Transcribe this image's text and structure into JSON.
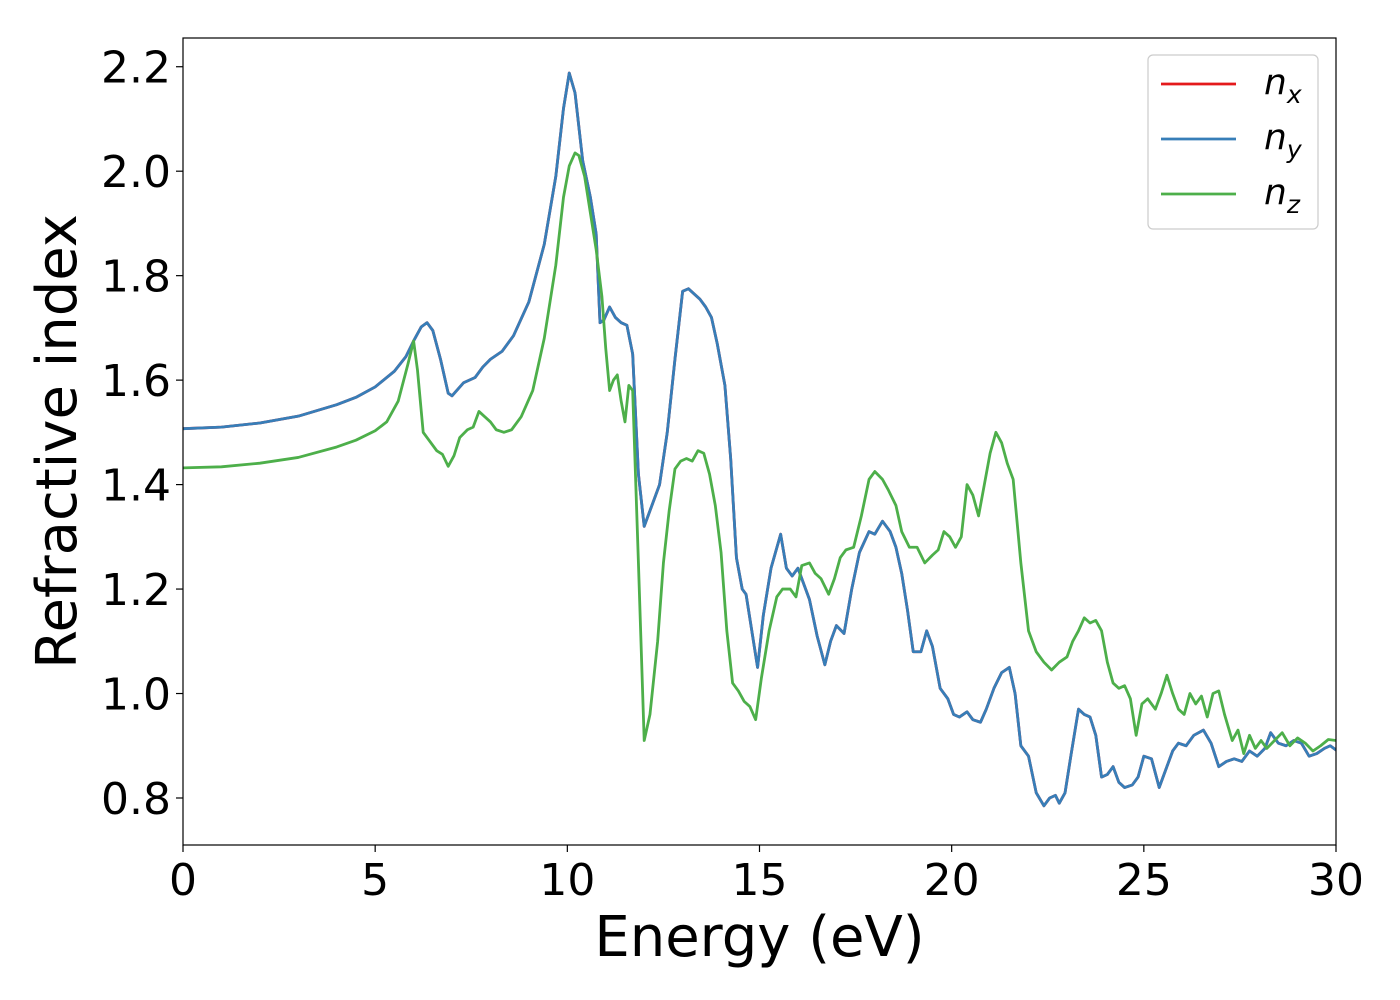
{
  "chart_data": {
    "type": "line",
    "title": "",
    "xlabel": "Energy (eV)",
    "ylabel": "Refractive index",
    "xlim": [
      0,
      30
    ],
    "ylim": [
      0.71,
      2.255
    ],
    "xticks": [
      0,
      5,
      10,
      15,
      20,
      25,
      30
    ],
    "xtick_labels": [
      "0",
      "5",
      "10",
      "15",
      "20",
      "25",
      "30"
    ],
    "yticks": [
      0.8,
      1.0,
      1.2,
      1.4,
      1.6,
      1.8,
      2.0,
      2.2
    ],
    "ytick_labels": [
      "0.8",
      "1.0",
      "1.2",
      "1.4",
      "1.6",
      "1.8",
      "2.0",
      "2.2"
    ],
    "grid": false,
    "legend": {
      "position": "top-right",
      "entries": [
        {
          "base": "n",
          "sub": "x",
          "color": "#e41a1c"
        },
        {
          "base": "n",
          "sub": "y",
          "color": "#377eb8"
        },
        {
          "base": "n",
          "sub": "z",
          "color": "#4daf4a"
        }
      ]
    },
    "series": [
      {
        "name": "n_x",
        "color": "#e41a1c",
        "x": [
          0,
          1,
          2,
          3,
          4,
          4.5,
          5,
          5.5,
          5.8,
          6.0,
          6.2,
          6.35,
          6.5,
          6.7,
          6.9,
          7.0,
          7.3,
          7.6,
          7.8,
          8.0,
          8.3,
          8.6,
          9.0,
          9.4,
          9.7,
          9.9,
          10.05,
          10.2,
          10.4,
          10.6,
          10.75,
          10.85,
          10.95,
          11.1,
          11.25,
          11.4,
          11.55,
          11.7,
          11.85,
          12.0,
          12.2,
          12.4,
          12.6,
          12.8,
          13.0,
          13.15,
          13.3,
          13.45,
          13.6,
          13.75,
          13.9,
          14.1,
          14.25,
          14.4,
          14.55,
          14.65,
          14.8,
          14.95,
          15.1,
          15.3,
          15.55,
          15.7,
          15.85,
          16.0,
          16.3,
          16.5,
          16.7,
          16.85,
          17.0,
          17.2,
          17.4,
          17.6,
          17.85,
          18.0,
          18.2,
          18.4,
          18.55,
          18.7,
          18.85,
          19.0,
          19.2,
          19.35,
          19.5,
          19.7,
          19.9,
          20.05,
          20.2,
          20.4,
          20.55,
          20.75,
          20.9,
          21.1,
          21.3,
          21.5,
          21.65,
          21.8,
          22.0,
          22.2,
          22.4,
          22.55,
          22.7,
          22.8,
          22.95,
          23.1,
          23.3,
          23.45,
          23.6,
          23.75,
          23.9,
          24.05,
          24.2,
          24.35,
          24.5,
          24.7,
          24.85,
          25.0,
          25.2,
          25.4,
          25.6,
          25.75,
          25.9,
          26.1,
          26.3,
          26.55,
          26.75,
          26.95,
          27.15,
          27.35,
          27.55,
          27.75,
          27.95,
          28.15,
          28.3,
          28.5,
          28.7,
          28.9,
          29.1,
          29.3,
          29.5,
          29.7,
          29.85,
          30.0
        ],
        "y": [
          1.507,
          1.51,
          1.518,
          1.531,
          1.553,
          1.567,
          1.587,
          1.617,
          1.645,
          1.675,
          1.702,
          1.71,
          1.695,
          1.64,
          1.575,
          1.57,
          1.595,
          1.605,
          1.625,
          1.64,
          1.655,
          1.685,
          1.75,
          1.86,
          1.99,
          2.12,
          2.188,
          2.15,
          2.02,
          1.95,
          1.88,
          1.71,
          1.715,
          1.74,
          1.72,
          1.71,
          1.705,
          1.65,
          1.42,
          1.32,
          1.36,
          1.4,
          1.5,
          1.64,
          1.77,
          1.775,
          1.765,
          1.755,
          1.74,
          1.72,
          1.67,
          1.59,
          1.45,
          1.26,
          1.2,
          1.19,
          1.12,
          1.05,
          1.15,
          1.24,
          1.305,
          1.24,
          1.225,
          1.24,
          1.18,
          1.11,
          1.055,
          1.1,
          1.13,
          1.115,
          1.2,
          1.27,
          1.31,
          1.305,
          1.33,
          1.31,
          1.28,
          1.23,
          1.16,
          1.08,
          1.08,
          1.12,
          1.09,
          1.01,
          0.99,
          0.96,
          0.955,
          0.965,
          0.95,
          0.945,
          0.97,
          1.01,
          1.04,
          1.05,
          1.0,
          0.9,
          0.88,
          0.81,
          0.785,
          0.8,
          0.805,
          0.79,
          0.81,
          0.88,
          0.97,
          0.96,
          0.955,
          0.92,
          0.84,
          0.845,
          0.86,
          0.83,
          0.82,
          0.825,
          0.84,
          0.88,
          0.875,
          0.82,
          0.86,
          0.89,
          0.905,
          0.9,
          0.92,
          0.93,
          0.905,
          0.86,
          0.87,
          0.875,
          0.87,
          0.89,
          0.88,
          0.895,
          0.925,
          0.905,
          0.9,
          0.91,
          0.905,
          0.88,
          0.885,
          0.895,
          0.9,
          0.892
        ]
      },
      {
        "name": "n_y",
        "color": "#377eb8",
        "x": [
          0,
          1,
          2,
          3,
          4,
          4.5,
          5,
          5.5,
          5.8,
          6.0,
          6.2,
          6.35,
          6.5,
          6.7,
          6.9,
          7.0,
          7.3,
          7.6,
          7.8,
          8.0,
          8.3,
          8.6,
          9.0,
          9.4,
          9.7,
          9.9,
          10.05,
          10.2,
          10.4,
          10.6,
          10.75,
          10.85,
          10.95,
          11.1,
          11.25,
          11.4,
          11.55,
          11.7,
          11.85,
          12.0,
          12.2,
          12.4,
          12.6,
          12.8,
          13.0,
          13.15,
          13.3,
          13.45,
          13.6,
          13.75,
          13.9,
          14.1,
          14.25,
          14.4,
          14.55,
          14.65,
          14.8,
          14.95,
          15.1,
          15.3,
          15.55,
          15.7,
          15.85,
          16.0,
          16.3,
          16.5,
          16.7,
          16.85,
          17.0,
          17.2,
          17.4,
          17.6,
          17.85,
          18.0,
          18.2,
          18.4,
          18.55,
          18.7,
          18.85,
          19.0,
          19.2,
          19.35,
          19.5,
          19.7,
          19.9,
          20.05,
          20.2,
          20.4,
          20.55,
          20.75,
          20.9,
          21.1,
          21.3,
          21.5,
          21.65,
          21.8,
          22.0,
          22.2,
          22.4,
          22.55,
          22.7,
          22.8,
          22.95,
          23.1,
          23.3,
          23.45,
          23.6,
          23.75,
          23.9,
          24.05,
          24.2,
          24.35,
          24.5,
          24.7,
          24.85,
          25.0,
          25.2,
          25.4,
          25.6,
          25.75,
          25.9,
          26.1,
          26.3,
          26.55,
          26.75,
          26.95,
          27.15,
          27.35,
          27.55,
          27.75,
          27.95,
          28.15,
          28.3,
          28.5,
          28.7,
          28.9,
          29.1,
          29.3,
          29.5,
          29.7,
          29.85,
          30.0
        ],
        "y": [
          1.507,
          1.51,
          1.518,
          1.531,
          1.553,
          1.567,
          1.587,
          1.617,
          1.645,
          1.675,
          1.702,
          1.71,
          1.695,
          1.64,
          1.575,
          1.57,
          1.595,
          1.605,
          1.625,
          1.64,
          1.655,
          1.685,
          1.75,
          1.86,
          1.99,
          2.12,
          2.188,
          2.15,
          2.02,
          1.95,
          1.88,
          1.71,
          1.715,
          1.74,
          1.72,
          1.71,
          1.705,
          1.65,
          1.42,
          1.32,
          1.36,
          1.4,
          1.5,
          1.64,
          1.77,
          1.775,
          1.765,
          1.755,
          1.74,
          1.72,
          1.67,
          1.59,
          1.45,
          1.26,
          1.2,
          1.19,
          1.12,
          1.05,
          1.15,
          1.24,
          1.305,
          1.24,
          1.225,
          1.24,
          1.18,
          1.11,
          1.055,
          1.1,
          1.13,
          1.115,
          1.2,
          1.27,
          1.31,
          1.305,
          1.33,
          1.31,
          1.28,
          1.23,
          1.16,
          1.08,
          1.08,
          1.12,
          1.09,
          1.01,
          0.99,
          0.96,
          0.955,
          0.965,
          0.95,
          0.945,
          0.97,
          1.01,
          1.04,
          1.05,
          1.0,
          0.9,
          0.88,
          0.81,
          0.785,
          0.8,
          0.805,
          0.79,
          0.81,
          0.88,
          0.97,
          0.96,
          0.955,
          0.92,
          0.84,
          0.845,
          0.86,
          0.83,
          0.82,
          0.825,
          0.84,
          0.88,
          0.875,
          0.82,
          0.86,
          0.89,
          0.905,
          0.9,
          0.92,
          0.93,
          0.905,
          0.86,
          0.87,
          0.875,
          0.87,
          0.89,
          0.88,
          0.895,
          0.925,
          0.905,
          0.9,
          0.91,
          0.905,
          0.88,
          0.885,
          0.895,
          0.9,
          0.892
        ]
      },
      {
        "name": "n_z",
        "color": "#4daf4a",
        "x": [
          0,
          1,
          2,
          3,
          4,
          4.5,
          5,
          5.3,
          5.6,
          5.85,
          6.0,
          6.1,
          6.25,
          6.4,
          6.6,
          6.75,
          6.9,
          7.05,
          7.2,
          7.4,
          7.55,
          7.7,
          7.85,
          8.0,
          8.15,
          8.35,
          8.55,
          8.8,
          9.1,
          9.4,
          9.7,
          9.9,
          10.05,
          10.2,
          10.3,
          10.45,
          10.6,
          10.75,
          10.9,
          11.0,
          11.1,
          11.2,
          11.3,
          11.4,
          11.5,
          11.6,
          11.7,
          11.85,
          12.0,
          12.15,
          12.35,
          12.5,
          12.65,
          12.8,
          12.95,
          13.1,
          13.25,
          13.4,
          13.55,
          13.7,
          13.85,
          14.0,
          14.15,
          14.3,
          14.45,
          14.6,
          14.75,
          14.9,
          15.05,
          15.25,
          15.45,
          15.6,
          15.8,
          15.95,
          16.1,
          16.3,
          16.45,
          16.6,
          16.8,
          16.95,
          17.1,
          17.25,
          17.45,
          17.65,
          17.85,
          18.0,
          18.2,
          18.35,
          18.55,
          18.7,
          18.9,
          19.1,
          19.3,
          19.5,
          19.65,
          19.8,
          19.95,
          20.1,
          20.25,
          20.4,
          20.55,
          20.7,
          20.85,
          21.0,
          21.15,
          21.3,
          21.45,
          21.6,
          21.8,
          22.0,
          22.2,
          22.4,
          22.6,
          22.8,
          23.0,
          23.15,
          23.3,
          23.45,
          23.6,
          23.75,
          23.9,
          24.05,
          24.2,
          24.35,
          24.5,
          24.65,
          24.8,
          24.95,
          25.1,
          25.3,
          25.45,
          25.6,
          25.75,
          25.9,
          26.05,
          26.2,
          26.35,
          26.5,
          26.65,
          26.8,
          26.95,
          27.1,
          27.3,
          27.45,
          27.6,
          27.75,
          27.9,
          28.05,
          28.2,
          28.4,
          28.6,
          28.8,
          29.0,
          29.2,
          29.4,
          29.6,
          29.8,
          30.0
        ],
        "y": [
          1.432,
          1.434,
          1.441,
          1.452,
          1.472,
          1.485,
          1.503,
          1.52,
          1.56,
          1.63,
          1.675,
          1.62,
          1.5,
          1.485,
          1.465,
          1.458,
          1.435,
          1.455,
          1.49,
          1.505,
          1.51,
          1.54,
          1.53,
          1.52,
          1.505,
          1.5,
          1.505,
          1.53,
          1.58,
          1.68,
          1.82,
          1.95,
          2.01,
          2.035,
          2.03,
          1.99,
          1.92,
          1.85,
          1.76,
          1.66,
          1.58,
          1.6,
          1.61,
          1.56,
          1.52,
          1.59,
          1.58,
          1.25,
          0.91,
          0.96,
          1.1,
          1.25,
          1.35,
          1.43,
          1.445,
          1.45,
          1.445,
          1.465,
          1.46,
          1.42,
          1.36,
          1.27,
          1.12,
          1.02,
          1.005,
          0.985,
          0.975,
          0.95,
          1.03,
          1.12,
          1.185,
          1.2,
          1.2,
          1.185,
          1.245,
          1.25,
          1.23,
          1.22,
          1.19,
          1.22,
          1.26,
          1.275,
          1.28,
          1.34,
          1.41,
          1.425,
          1.41,
          1.39,
          1.36,
          1.31,
          1.28,
          1.28,
          1.25,
          1.265,
          1.275,
          1.31,
          1.3,
          1.28,
          1.3,
          1.4,
          1.38,
          1.34,
          1.4,
          1.46,
          1.5,
          1.48,
          1.44,
          1.41,
          1.25,
          1.12,
          1.08,
          1.06,
          1.045,
          1.06,
          1.07,
          1.1,
          1.12,
          1.145,
          1.135,
          1.14,
          1.12,
          1.06,
          1.02,
          1.01,
          1.015,
          0.99,
          0.92,
          0.98,
          0.99,
          0.97,
          1.0,
          1.035,
          1.0,
          0.97,
          0.96,
          1.0,
          0.98,
          0.995,
          0.955,
          1.0,
          1.005,
          0.96,
          0.91,
          0.93,
          0.885,
          0.92,
          0.895,
          0.91,
          0.895,
          0.91,
          0.925,
          0.9,
          0.915,
          0.905,
          0.89,
          0.9,
          0.912,
          0.91
        ]
      }
    ]
  }
}
